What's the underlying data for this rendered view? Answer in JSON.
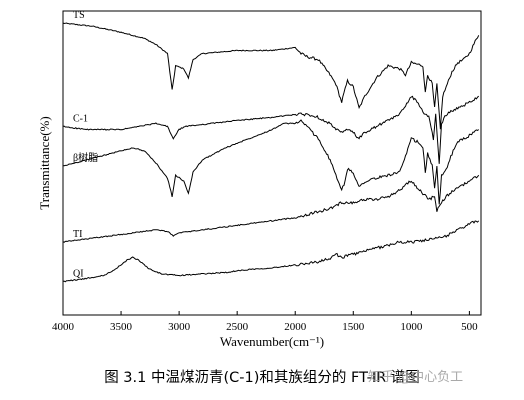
{
  "chart_data": {
    "type": "line",
    "xlabel": "Wavenumber(cm⁻¹)",
    "ylabel": "Transmittance(%)",
    "xlim": [
      4000,
      400
    ],
    "x_axis_reversed": true,
    "x_ticks": [
      4000,
      3500,
      3000,
      2500,
      2000,
      1500,
      1000,
      500
    ],
    "y_ticks_shown": false,
    "grid": false,
    "line_color": "#000000",
    "y_range": [
      0,
      100
    ],
    "series": [
      {
        "name": "TS",
        "points": [
          [
            4000,
            96
          ],
          [
            3750,
            95
          ],
          [
            3500,
            93
          ],
          [
            3300,
            91
          ],
          [
            3200,
            89
          ],
          [
            3100,
            86
          ],
          [
            3060,
            74
          ],
          [
            3030,
            82
          ],
          [
            2960,
            81
          ],
          [
            2920,
            78
          ],
          [
            2880,
            84
          ],
          [
            2800,
            86
          ],
          [
            2500,
            87
          ],
          [
            2200,
            87
          ],
          [
            2000,
            88
          ],
          [
            1950,
            86
          ],
          [
            1900,
            85
          ],
          [
            1800,
            84
          ],
          [
            1700,
            79
          ],
          [
            1650,
            76
          ],
          [
            1600,
            70
          ],
          [
            1580,
            73
          ],
          [
            1550,
            77
          ],
          [
            1500,
            75
          ],
          [
            1450,
            68
          ],
          [
            1400,
            72
          ],
          [
            1300,
            78
          ],
          [
            1200,
            82
          ],
          [
            1100,
            81
          ],
          [
            1050,
            79
          ],
          [
            1000,
            83
          ],
          [
            900,
            82
          ],
          [
            880,
            73
          ],
          [
            860,
            79
          ],
          [
            820,
            76
          ],
          [
            800,
            68
          ],
          [
            780,
            76
          ],
          [
            750,
            61
          ],
          [
            730,
            72
          ],
          [
            700,
            75
          ],
          [
            650,
            80
          ],
          [
            600,
            83
          ],
          [
            550,
            84
          ],
          [
            500,
            86
          ],
          [
            450,
            90
          ],
          [
            420,
            92
          ]
        ]
      },
      {
        "name": "C-1",
        "points": [
          [
            4000,
            62
          ],
          [
            3800,
            61
          ],
          [
            3500,
            61
          ],
          [
            3200,
            63
          ],
          [
            3100,
            62
          ],
          [
            3050,
            58
          ],
          [
            3000,
            61
          ],
          [
            2950,
            62
          ],
          [
            2500,
            64
          ],
          [
            2200,
            65
          ],
          [
            2000,
            66
          ],
          [
            1900,
            66
          ],
          [
            1800,
            65
          ],
          [
            1700,
            63
          ],
          [
            1650,
            61
          ],
          [
            1600,
            60
          ],
          [
            1550,
            61
          ],
          [
            1500,
            60
          ],
          [
            1450,
            58
          ],
          [
            1400,
            60
          ],
          [
            1300,
            62
          ],
          [
            1200,
            64
          ],
          [
            1100,
            66
          ],
          [
            1050,
            69
          ],
          [
            1000,
            72
          ],
          [
            950,
            70
          ],
          [
            900,
            67
          ],
          [
            850,
            65
          ],
          [
            810,
            58
          ],
          [
            790,
            66
          ],
          [
            760,
            50
          ],
          [
            740,
            63
          ],
          [
            700,
            66
          ],
          [
            600,
            68
          ],
          [
            500,
            70
          ],
          [
            420,
            72
          ]
        ]
      },
      {
        "name": "β树脂",
        "points": [
          [
            4000,
            49
          ],
          [
            3800,
            51
          ],
          [
            3600,
            53
          ],
          [
            3400,
            55
          ],
          [
            3300,
            54
          ],
          [
            3200,
            50
          ],
          [
            3100,
            45
          ],
          [
            3060,
            39
          ],
          [
            3030,
            46
          ],
          [
            2960,
            44
          ],
          [
            2920,
            40
          ],
          [
            2880,
            47
          ],
          [
            2800,
            51
          ],
          [
            2600,
            55
          ],
          [
            2400,
            58
          ],
          [
            2200,
            61
          ],
          [
            2100,
            63
          ],
          [
            2000,
            63
          ],
          [
            1950,
            64
          ],
          [
            1900,
            62
          ],
          [
            1800,
            58
          ],
          [
            1700,
            51
          ],
          [
            1650,
            46
          ],
          [
            1600,
            41
          ],
          [
            1570,
            44
          ],
          [
            1550,
            48
          ],
          [
            1500,
            47
          ],
          [
            1450,
            42
          ],
          [
            1400,
            44
          ],
          [
            1300,
            45
          ],
          [
            1200,
            46
          ],
          [
            1100,
            47
          ],
          [
            1050,
            52
          ],
          [
            1000,
            58
          ],
          [
            950,
            57
          ],
          [
            900,
            55
          ],
          [
            880,
            47
          ],
          [
            860,
            53
          ],
          [
            820,
            49
          ],
          [
            800,
            42
          ],
          [
            780,
            49
          ],
          [
            760,
            36
          ],
          [
            740,
            46
          ],
          [
            700,
            48
          ],
          [
            650,
            53
          ],
          [
            600,
            57
          ],
          [
            500,
            59
          ],
          [
            420,
            61
          ]
        ]
      },
      {
        "name": "TI",
        "points": [
          [
            4000,
            24
          ],
          [
            3800,
            25
          ],
          [
            3600,
            26
          ],
          [
            3400,
            27
          ],
          [
            3200,
            28
          ],
          [
            3100,
            27.5
          ],
          [
            3050,
            26
          ],
          [
            3000,
            27
          ],
          [
            2800,
            28
          ],
          [
            2600,
            29
          ],
          [
            2400,
            30
          ],
          [
            2200,
            31
          ],
          [
            2000,
            32
          ],
          [
            1900,
            33
          ],
          [
            1800,
            34
          ],
          [
            1700,
            35
          ],
          [
            1650,
            36
          ],
          [
            1600,
            37
          ],
          [
            1500,
            37
          ],
          [
            1400,
            38
          ],
          [
            1300,
            38
          ],
          [
            1200,
            39
          ],
          [
            1100,
            41
          ],
          [
            1050,
            43
          ],
          [
            1000,
            44
          ],
          [
            950,
            42
          ],
          [
            900,
            40
          ],
          [
            850,
            38
          ],
          [
            800,
            39
          ],
          [
            780,
            34
          ],
          [
            760,
            36
          ],
          [
            700,
            39
          ],
          [
            600,
            42
          ],
          [
            500,
            44
          ],
          [
            420,
            46
          ]
        ]
      },
      {
        "name": "QI",
        "points": [
          [
            4000,
            11
          ],
          [
            3800,
            12
          ],
          [
            3650,
            13
          ],
          [
            3550,
            15
          ],
          [
            3450,
            18
          ],
          [
            3400,
            19
          ],
          [
            3350,
            18
          ],
          [
            3250,
            15
          ],
          [
            3150,
            13.5
          ],
          [
            3000,
            13
          ],
          [
            2800,
            13.5
          ],
          [
            2600,
            14
          ],
          [
            2400,
            15
          ],
          [
            2200,
            15.5
          ],
          [
            2000,
            16.5
          ],
          [
            1800,
            17.5
          ],
          [
            1700,
            18.5
          ],
          [
            1650,
            20
          ],
          [
            1600,
            19
          ],
          [
            1500,
            20
          ],
          [
            1400,
            21
          ],
          [
            1300,
            22
          ],
          [
            1200,
            23
          ],
          [
            1100,
            24
          ],
          [
            1000,
            24
          ],
          [
            900,
            24.5
          ],
          [
            800,
            25
          ],
          [
            700,
            26
          ],
          [
            600,
            28
          ],
          [
            500,
            30
          ],
          [
            420,
            31
          ]
        ]
      }
    ]
  },
  "caption": "图 3.1 中温煤沥青(C-1)和其族组分的 FT-IR 谱图",
  "watermark": "知乎 @中心负工"
}
